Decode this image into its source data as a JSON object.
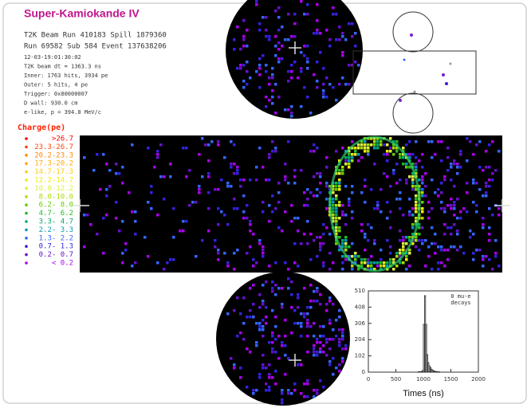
{
  "header": {
    "title": "Super-Kamiokande IV",
    "lines": [
      "T2K Beam Run 410183 Spill 1879360",
      "Run 69582 Sub 584 Event 137638206"
    ],
    "details": [
      "12-03-19:01:30:02",
      "T2K beam dt = 1363.3 ns",
      "Inner: 1763 hits, 3934 pe",
      "Outer: 5 hits, 4 pe",
      "Trigger: 0x80000007",
      "D wall: 930.0 cm",
      "e-like, p = 394.8 MeV/c"
    ]
  },
  "legend": {
    "title": "Charge(pe)",
    "items": [
      {
        "label": ">26.7",
        "color": "#ff0000"
      },
      {
        "label": "23.3-26.7",
        "color": "#ff4400"
      },
      {
        "label": "20.2-23.3",
        "color": "#ff8800"
      },
      {
        "label": "17.3-20.2",
        "color": "#ffaa00"
      },
      {
        "label": "14.7-17.3",
        "color": "#ffcc00"
      },
      {
        "label": "12.2-14.7",
        "color": "#eeee00"
      },
      {
        "label": "10.0-12.2",
        "color": "#ddee44"
      },
      {
        "label": "8.0-10.0",
        "color": "#aadd00"
      },
      {
        "label": "6.2- 8.0",
        "color": "#66cc00"
      },
      {
        "label": "4.7- 6.2",
        "color": "#22bb22"
      },
      {
        "label": "3.3- 4.7",
        "color": "#00aa66"
      },
      {
        "label": "2.2- 3.3",
        "color": "#0099bb"
      },
      {
        "label": "1.3- 2.2",
        "color": "#3366ff"
      },
      {
        "label": "0.7- 1.3",
        "color": "#3322dd"
      },
      {
        "label": "0.2- 0.7",
        "color": "#6611cc"
      },
      {
        "label": "< 0.2",
        "color": "#aa00ee"
      }
    ]
  },
  "chart_data": {
    "type": "histogram",
    "annotation": [
      "0 mu-e",
      "decays"
    ],
    "x_label": "Times (ns)",
    "bins": [
      900,
      920,
      940,
      960,
      980,
      1000,
      1020,
      1040,
      1060,
      1080,
      1100,
      1120,
      1140,
      1160,
      1180,
      1200,
      1220,
      1240,
      1260,
      1280,
      1300
    ],
    "values": [
      2,
      3,
      2,
      4,
      10,
      300,
      480,
      300,
      110,
      60,
      40,
      28,
      18,
      12,
      8,
      5,
      4,
      3,
      2,
      2
    ],
    "xlim": [
      0,
      2000
    ],
    "ylim": [
      0,
      510
    ],
    "xticks": [
      0,
      500,
      1000,
      1500,
      2000
    ],
    "yticks": [
      0,
      102,
      204,
      306,
      408,
      510
    ]
  }
}
